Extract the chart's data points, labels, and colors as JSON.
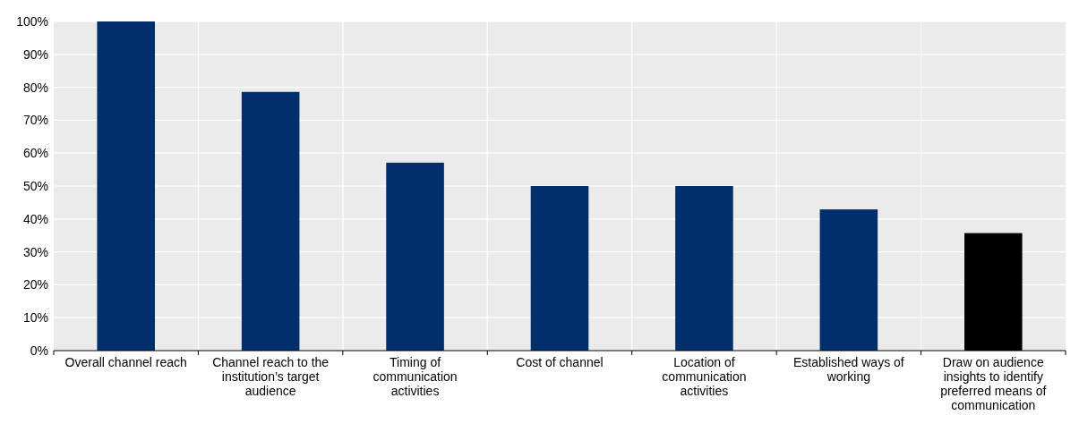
{
  "chart_data": {
    "type": "bar",
    "categories": [
      "Overall channel reach",
      "Channel reach to the institution’s target audience",
      "Timing of communication activities",
      "Cost of channel",
      "Location of communication activities",
      "Established ways of working",
      "Draw on audience insights to identify preferred means of communication"
    ],
    "values": [
      100,
      78.6,
      57.1,
      50,
      50,
      42.9,
      35.7
    ],
    "colors": [
      "#002f6c",
      "#002f6c",
      "#002f6c",
      "#002f6c",
      "#002f6c",
      "#002f6c",
      "#000000"
    ],
    "ylim": [
      0,
      100
    ],
    "yticks": [
      {
        "value": 0,
        "label": "0%"
      },
      {
        "value": 10,
        "label": "10%"
      },
      {
        "value": 20,
        "label": "20%"
      },
      {
        "value": 30,
        "label": "30%"
      },
      {
        "value": 40,
        "label": "40%"
      },
      {
        "value": 50,
        "label": "50%"
      },
      {
        "value": 60,
        "label": "60%"
      },
      {
        "value": 70,
        "label": "70%"
      },
      {
        "value": 80,
        "label": "80%"
      },
      {
        "value": 90,
        "label": "90%"
      },
      {
        "value": 100,
        "label": "100%"
      }
    ],
    "grid": true
  }
}
